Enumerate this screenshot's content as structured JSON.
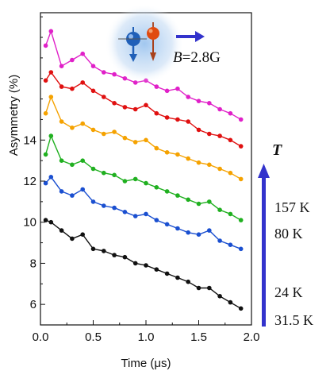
{
  "chart_data": {
    "type": "line",
    "xlabel": "Time (μs)",
    "ylabel": "Asymmetry (%)",
    "xlim": [
      0.0,
      2.0
    ],
    "ylim": [
      5.0,
      20.2
    ],
    "xticks": [
      {
        "value": 0.0,
        "label": "0.0"
      },
      {
        "value": 0.5,
        "label": "0.5"
      },
      {
        "value": 1.0,
        "label": "1.0"
      },
      {
        "value": 1.5,
        "label": "1.5"
      },
      {
        "value": 2.0,
        "label": "2.0"
      }
    ],
    "yticks": [
      {
        "value": 6,
        "label": "6"
      },
      {
        "value": 8,
        "label": "8"
      },
      {
        "value": 10,
        "label": "10"
      },
      {
        "value": 12,
        "label": "12"
      },
      {
        "value": 14,
        "label": "14"
      }
    ],
    "grid": false,
    "series_x": [
      0.05,
      0.1,
      0.2,
      0.3,
      0.4,
      0.5,
      0.6,
      0.7,
      0.8,
      0.9,
      1.0,
      1.1,
      1.2,
      1.3,
      1.4,
      1.5,
      1.6,
      1.7,
      1.8,
      1.9
    ],
    "series": [
      {
        "color": "#e020c8",
        "values": [
          18.6,
          19.3,
          17.6,
          17.9,
          18.2,
          17.6,
          17.3,
          17.2,
          17.0,
          16.8,
          16.9,
          16.6,
          16.4,
          16.5,
          16.1,
          15.9,
          15.8,
          15.5,
          15.3,
          15.0
        ]
      },
      {
        "color": "#e01010",
        "values": [
          16.9,
          17.3,
          16.6,
          16.5,
          16.8,
          16.4,
          16.1,
          15.8,
          15.6,
          15.5,
          15.7,
          15.3,
          15.1,
          15.0,
          14.9,
          14.5,
          14.3,
          14.2,
          14.0,
          13.7
        ]
      },
      {
        "color": "#f5a200",
        "values": [
          15.3,
          16.1,
          14.9,
          14.6,
          14.8,
          14.5,
          14.3,
          14.4,
          14.1,
          13.9,
          14.0,
          13.6,
          13.4,
          13.3,
          13.1,
          12.9,
          12.8,
          12.6,
          12.4,
          12.1
        ]
      },
      {
        "color": "#20b020",
        "values": [
          13.3,
          14.2,
          13.0,
          12.8,
          13.0,
          12.6,
          12.4,
          12.3,
          12.0,
          12.1,
          11.9,
          11.7,
          11.5,
          11.3,
          11.1,
          10.9,
          11.0,
          10.6,
          10.4,
          10.1
        ]
      },
      {
        "color": "#1a4fd0",
        "values": [
          11.9,
          12.2,
          11.5,
          11.3,
          11.6,
          11.0,
          10.8,
          10.7,
          10.5,
          10.3,
          10.4,
          10.1,
          9.9,
          9.7,
          9.5,
          9.4,
          9.6,
          9.1,
          8.9,
          8.7
        ]
      },
      {
        "color": "#111111",
        "values": [
          10.1,
          10.0,
          9.6,
          9.2,
          9.4,
          8.7,
          8.6,
          8.4,
          8.3,
          8.0,
          7.9,
          7.7,
          7.5,
          7.3,
          7.1,
          6.8,
          6.8,
          6.4,
          6.1,
          5.8
        ]
      }
    ],
    "arrow_color": "#3333cc",
    "annotations": {
      "field": "B=2.8G",
      "field_symbol": "B",
      "field_value": "=2.8G",
      "temp_axis": "T",
      "temp_labels": [
        "157 K",
        "80 K",
        "24 K",
        "31.5 K"
      ]
    }
  }
}
